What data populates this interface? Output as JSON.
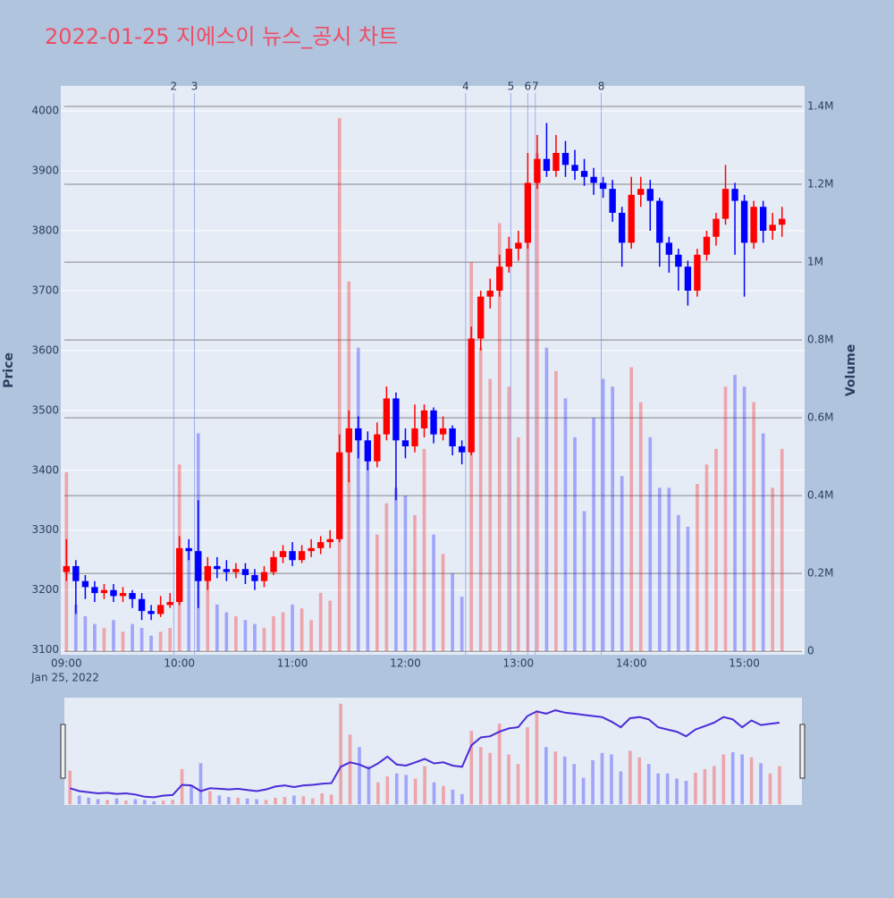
{
  "chart_data": {
    "type": "candlestick",
    "title": "2022-01-25 지에스이 뉴스_공시 차트",
    "ylabel": "Price",
    "y2label": "Volume",
    "x_date": "Jan 25, 2022",
    "increasing_color": "#ff0000",
    "decreasing_color": "#0000ff",
    "xlim": [
      "08:57",
      "15:32"
    ],
    "xticks": [
      "09:00",
      "10:00",
      "11:00",
      "12:00",
      "13:00",
      "14:00",
      "15:00"
    ],
    "ylim": [
      3092,
      4042
    ],
    "yticks": [
      3100,
      3200,
      3300,
      3400,
      3500,
      3600,
      3700,
      3800,
      3900,
      4000
    ],
    "y2lim": [
      -9000,
      1453000
    ],
    "y2ticks": [
      0,
      {
        "value": 200000,
        "label": "0.2M"
      },
      {
        "value": 400000,
        "label": "0.4M"
      },
      {
        "value": 600000,
        "label": "0.6M"
      },
      {
        "value": 800000,
        "label": "0.8M"
      },
      {
        "value": 1000000,
        "label": "1M"
      },
      {
        "value": 1200000,
        "label": "1.2M"
      },
      {
        "value": 1400000,
        "label": "1.4M"
      }
    ],
    "annotations": [
      {
        "x": "09:57",
        "label": "2"
      },
      {
        "x": "10:08",
        "label": "3"
      },
      {
        "x": "12:32",
        "label": "4"
      },
      {
        "x": "12:56",
        "label": "5"
      },
      {
        "x": "13:05",
        "label": "6"
      },
      {
        "x": "13:09",
        "label": "7"
      },
      {
        "x": "13:44",
        "label": "8"
      }
    ],
    "x": [
      "09:00",
      "09:05",
      "09:10",
      "09:15",
      "09:20",
      "09:25",
      "09:30",
      "09:35",
      "09:40",
      "09:45",
      "09:50",
      "09:55",
      "10:00",
      "10:05",
      "10:10",
      "10:15",
      "10:20",
      "10:25",
      "10:30",
      "10:35",
      "10:40",
      "10:45",
      "10:50",
      "10:55",
      "11:00",
      "11:05",
      "11:10",
      "11:15",
      "11:20",
      "11:25",
      "11:30",
      "11:35",
      "11:40",
      "11:45",
      "11:50",
      "11:55",
      "12:00",
      "12:05",
      "12:10",
      "12:15",
      "12:20",
      "12:25",
      "12:30",
      "12:35",
      "12:40",
      "12:45",
      "12:50",
      "12:55",
      "13:00",
      "13:05",
      "13:10",
      "13:15",
      "13:20",
      "13:25",
      "13:30",
      "13:35",
      "13:40",
      "13:45",
      "13:50",
      "13:55",
      "14:00",
      "14:05",
      "14:10",
      "14:15",
      "14:20",
      "14:25",
      "14:30",
      "14:35",
      "14:40",
      "14:45",
      "14:50",
      "14:55",
      "15:00",
      "15:05",
      "15:10",
      "15:15",
      "15:20"
    ],
    "open": [
      3230,
      3240,
      3215,
      3205,
      3195,
      3200,
      3190,
      3195,
      3185,
      3165,
      3160,
      3175,
      3180,
      3270,
      3265,
      3215,
      3240,
      3235,
      3230,
      3235,
      3225,
      3215,
      3230,
      3255,
      3265,
      3250,
      3265,
      3270,
      3280,
      3285,
      3430,
      3470,
      3450,
      3415,
      3460,
      3520,
      3450,
      3440,
      3470,
      3500,
      3460,
      3470,
      3440,
      3430,
      3620,
      3690,
      3700,
      3740,
      3770,
      3780,
      3880,
      3920,
      3900,
      3930,
      3910,
      3900,
      3890,
      3880,
      3870,
      3830,
      3780,
      3860,
      3870,
      3850,
      3780,
      3760,
      3740,
      3700,
      3760,
      3790,
      3820,
      3870,
      3850,
      3780,
      3840,
      3800,
      3810
    ],
    "high": [
      3285,
      3250,
      3225,
      3215,
      3210,
      3210,
      3205,
      3200,
      3195,
      3175,
      3190,
      3195,
      3290,
      3285,
      3350,
      3255,
      3255,
      3250,
      3245,
      3245,
      3235,
      3240,
      3265,
      3275,
      3280,
      3275,
      3285,
      3290,
      3300,
      3460,
      3500,
      3490,
      3465,
      3480,
      3540,
      3530,
      3470,
      3510,
      3510,
      3505,
      3490,
      3475,
      3450,
      3640,
      3700,
      3720,
      3760,
      3790,
      3800,
      3930,
      3960,
      3980,
      3960,
      3950,
      3935,
      3920,
      3905,
      3890,
      3885,
      3840,
      3890,
      3890,
      3885,
      3855,
      3790,
      3770,
      3750,
      3770,
      3800,
      3830,
      3910,
      3880,
      3860,
      3850,
      3850,
      3830,
      3840
    ],
    "low": [
      3215,
      3160,
      3185,
      3180,
      3185,
      3180,
      3180,
      3170,
      3150,
      3150,
      3155,
      3170,
      3175,
      3250,
      3170,
      3200,
      3220,
      3215,
      3220,
      3210,
      3200,
      3205,
      3225,
      3245,
      3240,
      3245,
      3255,
      3260,
      3270,
      3280,
      3380,
      3420,
      3400,
      3405,
      3450,
      3350,
      3420,
      3430,
      3455,
      3445,
      3450,
      3425,
      3410,
      3425,
      3600,
      3670,
      3690,
      3730,
      3750,
      3770,
      3870,
      3890,
      3890,
      3890,
      3885,
      3875,
      3860,
      3855,
      3815,
      3740,
      3770,
      3840,
      3800,
      3740,
      3730,
      3700,
      3675,
      3690,
      3750,
      3775,
      3810,
      3760,
      3690,
      3770,
      3780,
      3785,
      3790
    ],
    "close": [
      3240,
      3215,
      3205,
      3195,
      3200,
      3190,
      3195,
      3185,
      3165,
      3160,
      3175,
      3180,
      3270,
      3265,
      3215,
      3240,
      3235,
      3230,
      3235,
      3225,
      3215,
      3230,
      3255,
      3265,
      3250,
      3265,
      3270,
      3280,
      3285,
      3430,
      3470,
      3450,
      3415,
      3460,
      3520,
      3450,
      3440,
      3470,
      3500,
      3460,
      3470,
      3440,
      3430,
      3620,
      3690,
      3700,
      3740,
      3770,
      3780,
      3880,
      3920,
      3900,
      3930,
      3910,
      3900,
      3890,
      3880,
      3870,
      3830,
      3780,
      3860,
      3870,
      3850,
      3780,
      3760,
      3740,
      3700,
      3760,
      3790,
      3820,
      3870,
      3850,
      3780,
      3840,
      3800,
      3810,
      3820
    ],
    "volume": [
      460000,
      120000,
      90000,
      70000,
      60000,
      80000,
      50000,
      70000,
      60000,
      40000,
      50000,
      60000,
      480000,
      260000,
      560000,
      180000,
      120000,
      100000,
      90000,
      80000,
      70000,
      60000,
      90000,
      100000,
      120000,
      110000,
      80000,
      150000,
      130000,
      1370000,
      950000,
      780000,
      520000,
      300000,
      380000,
      420000,
      400000,
      350000,
      520000,
      300000,
      250000,
      200000,
      140000,
      1000000,
      780000,
      700000,
      1100000,
      680000,
      550000,
      1050000,
      1280000,
      780000,
      720000,
      650000,
      550000,
      360000,
      600000,
      700000,
      680000,
      450000,
      730000,
      640000,
      550000,
      420000,
      420000,
      350000,
      320000,
      430000,
      480000,
      520000,
      680000,
      710000,
      680000,
      640000,
      560000,
      420000,
      520000
    ]
  }
}
